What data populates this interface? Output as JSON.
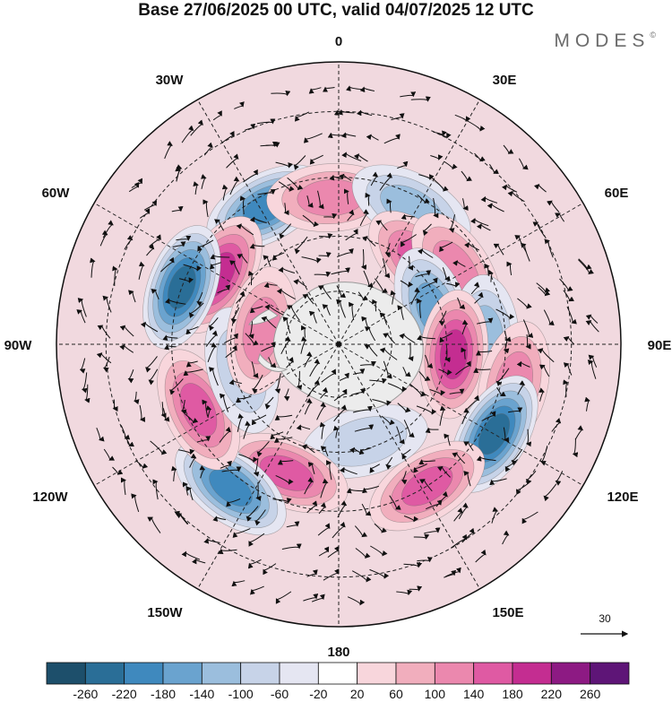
{
  "title": "Base 27/06/2025 00 UTC, valid 04/07/2025 12 UTC",
  "brand": "MODES",
  "brand_mark": "©",
  "longitude_labels": {
    "top": "0",
    "top_right_1": "30E",
    "right_1": "60E",
    "right": "90E",
    "right_2": "120E",
    "bottom_right": "150E",
    "bottom": "180",
    "bottom_left": "150W",
    "left_2": "120W",
    "left": "90W",
    "left_1": "60W",
    "top_left_1": "30W"
  },
  "reference_vector": {
    "label": "30"
  },
  "colorbar": {
    "ticks": [
      "-260",
      "-220",
      "-180",
      "-140",
      "-100",
      "-60",
      "-20",
      "20",
      "60",
      "100",
      "140",
      "180",
      "220",
      "260"
    ],
    "colors": [
      "#1d4f6b",
      "#2a6e97",
      "#3f89be",
      "#6aa3cf",
      "#9bbedd",
      "#c7d3e8",
      "#e5e6f2",
      "#ffffff",
      "#f8d6dc",
      "#f1aebd",
      "#eb88ae",
      "#df5aa3",
      "#c42d91",
      "#8d1a83",
      "#5e1577"
    ]
  },
  "map_data": {
    "projection": "south polar stereographic",
    "field": "geopotential height anomaly with wind vectors",
    "anomaly_centers": [
      {
        "lon": -28,
        "lat": -48,
        "value": -200
      },
      {
        "lon": -60,
        "lat": -52,
        "value": 180
      },
      {
        "lon": -70,
        "lat": -45,
        "value": -230
      },
      {
        "lon": -3,
        "lat": -50,
        "value": 120
      },
      {
        "lon": 28,
        "lat": -48,
        "value": -120
      },
      {
        "lon": 45,
        "lat": -58,
        "value": 140
      },
      {
        "lon": 58,
        "lat": -52,
        "value": 100
      },
      {
        "lon": 70,
        "lat": -62,
        "value": -160
      },
      {
        "lon": 88,
        "lat": -50,
        "value": -120
      },
      {
        "lon": 95,
        "lat": -58,
        "value": 200
      },
      {
        "lon": 103,
        "lat": -42,
        "value": 130
      },
      {
        "lon": 120,
        "lat": -42,
        "value": -240
      },
      {
        "lon": 148,
        "lat": -45,
        "value": 160
      },
      {
        "lon": 165,
        "lat": -62,
        "value": -80
      },
      {
        "lon": -158,
        "lat": -52,
        "value": 170
      },
      {
        "lon": -143,
        "lat": -42,
        "value": -200
      },
      {
        "lon": -115,
        "lat": -48,
        "value": 140
      },
      {
        "lon": -105,
        "lat": -62,
        "value": -60
      },
      {
        "lon": -80,
        "lat": -68,
        "value": 100
      }
    ]
  }
}
